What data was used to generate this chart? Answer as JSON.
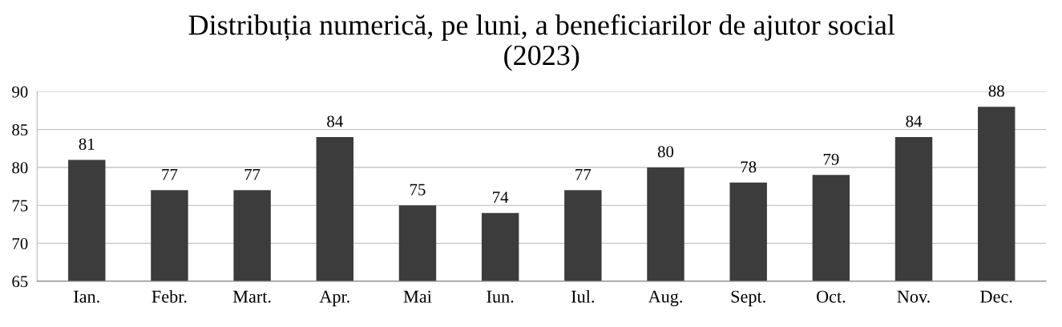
{
  "chart_data": {
    "type": "bar",
    "title": "Distribuția numerică, pe luni, a beneficiarilor de ajutor social\n(2023)",
    "categories": [
      "Ian.",
      "Febr.",
      "Mart.",
      "Apr.",
      "Mai",
      "Iun.",
      "Iul.",
      "Aug.",
      "Sept.",
      "Oct.",
      "Nov.",
      "Dec."
    ],
    "values": [
      81,
      77,
      77,
      84,
      75,
      74,
      77,
      80,
      78,
      79,
      84,
      88
    ],
    "color": "#3c3c3c",
    "ylim": [
      65,
      90
    ],
    "yticks": [
      65,
      70,
      75,
      80,
      85,
      90
    ],
    "grid": "y",
    "data_labels": true
  }
}
